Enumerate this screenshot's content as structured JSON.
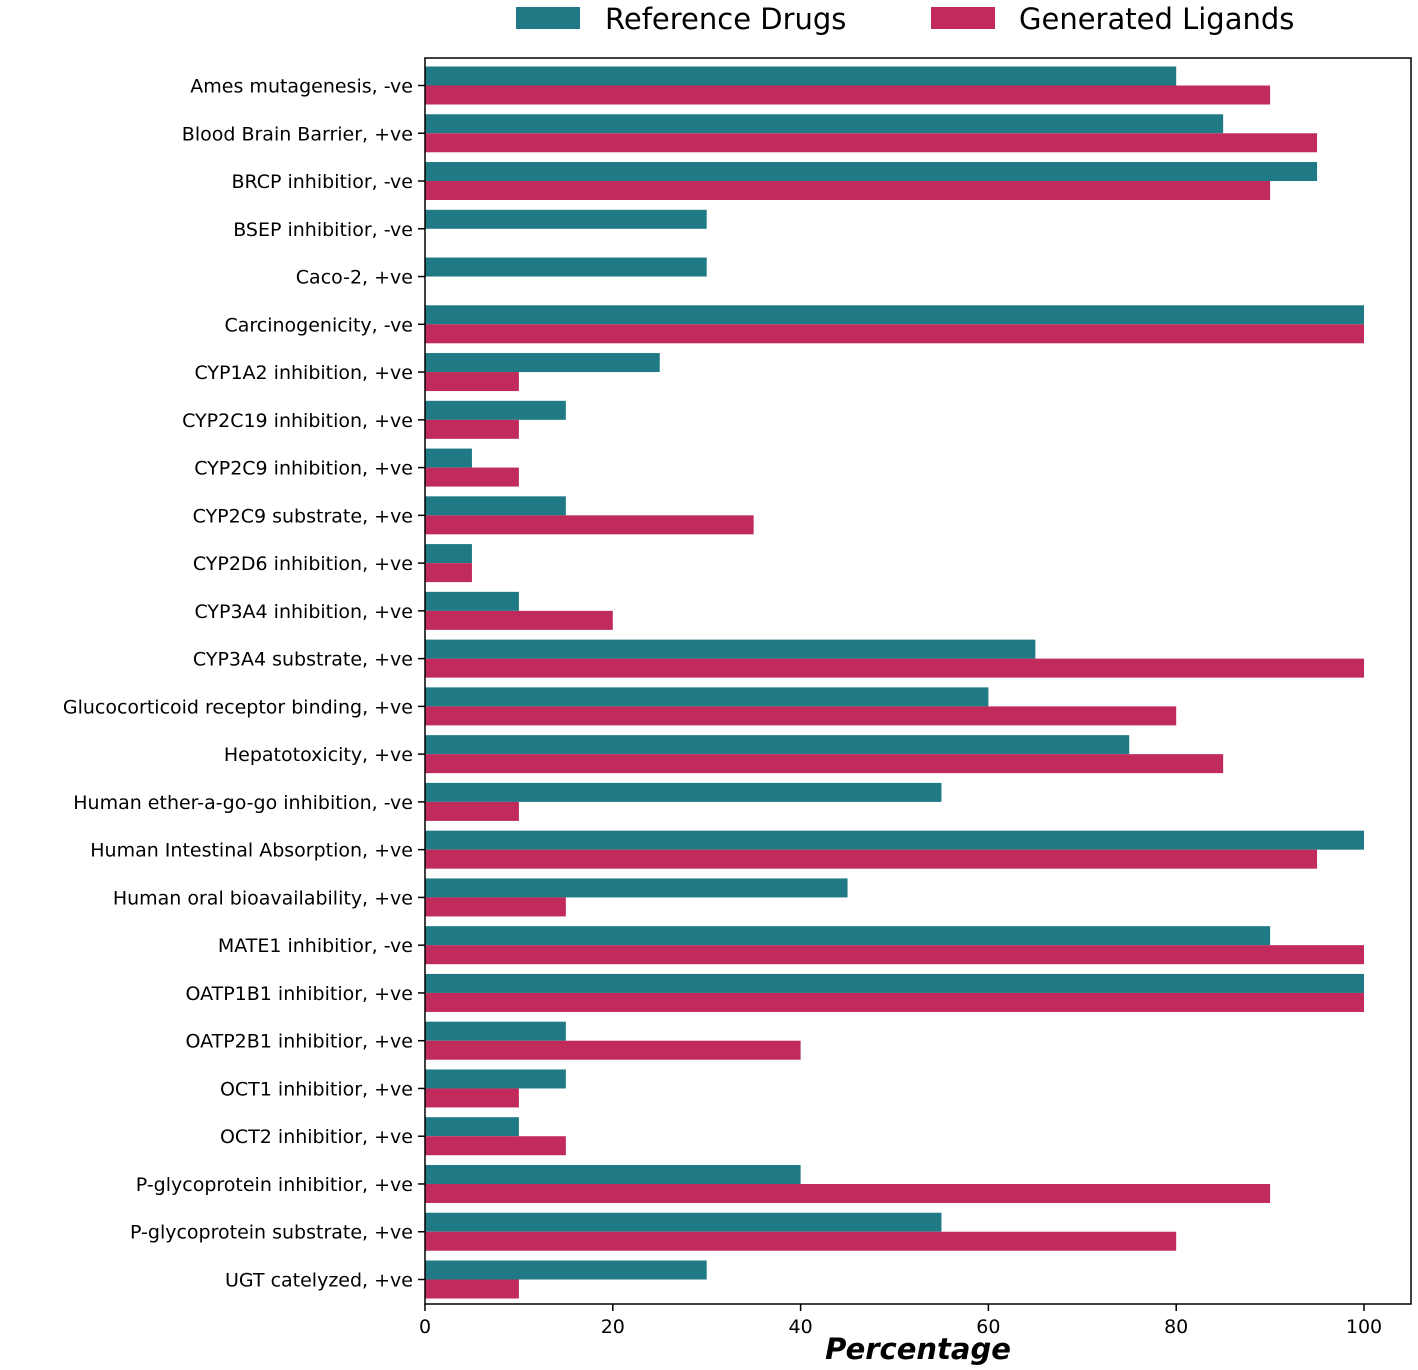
{
  "chart_data": {
    "type": "bar",
    "orientation": "horizontal",
    "title": "",
    "xlabel": "Percentage",
    "ylabel": "",
    "xlim": [
      0,
      105
    ],
    "xticks": [
      0,
      20,
      40,
      60,
      80,
      100
    ],
    "legend_position": "top-center",
    "categories": [
      "Ames mutagenesis, -ve",
      "Blood Brain Barrier, +ve",
      "BRCP inhibitior, -ve",
      "BSEP inhibitior, -ve",
      "Caco-2, +ve",
      "Carcinogenicity, -ve",
      "CYP1A2 inhibition, +ve",
      "CYP2C19 inhibition, +ve",
      "CYP2C9 inhibition, +ve",
      "CYP2C9 substrate, +ve",
      "CYP2D6 inhibition, +ve",
      "CYP3A4 inhibition, +ve",
      "CYP3A4 substrate, +ve",
      "Glucocorticoid receptor binding, +ve",
      "Hepatotoxicity, +ve",
      "Human ether-a-go-go inhibition, -ve",
      "Human Intestinal Absorption, +ve",
      "Human oral bioavailability, +ve",
      "MATE1 inhibitior, -ve",
      "OATP1B1 inhibitior, +ve",
      "OATP2B1 inhibitior, +ve",
      "OCT1 inhibitior, +ve",
      "OCT2 inhibitior, +ve",
      "P-glycoprotein inhibitior, +ve",
      "P-glycoprotein substrate, +ve",
      "UGT catelyzed, +ve"
    ],
    "series": [
      {
        "name": "Reference Drugs",
        "color": "#1f7a85",
        "values": [
          80,
          85,
          95,
          30,
          30,
          100,
          25,
          15,
          5,
          15,
          5,
          10,
          65,
          60,
          75,
          55,
          100,
          45,
          90,
          100,
          15,
          15,
          10,
          40,
          55,
          30
        ]
      },
      {
        "name": "Generated Ligands",
        "color": "#c02b5b",
        "values": [
          90,
          95,
          90,
          0,
          0,
          100,
          10,
          10,
          10,
          35,
          5,
          20,
          100,
          80,
          85,
          10,
          95,
          15,
          100,
          100,
          40,
          10,
          15,
          90,
          80,
          10
        ]
      }
    ]
  }
}
